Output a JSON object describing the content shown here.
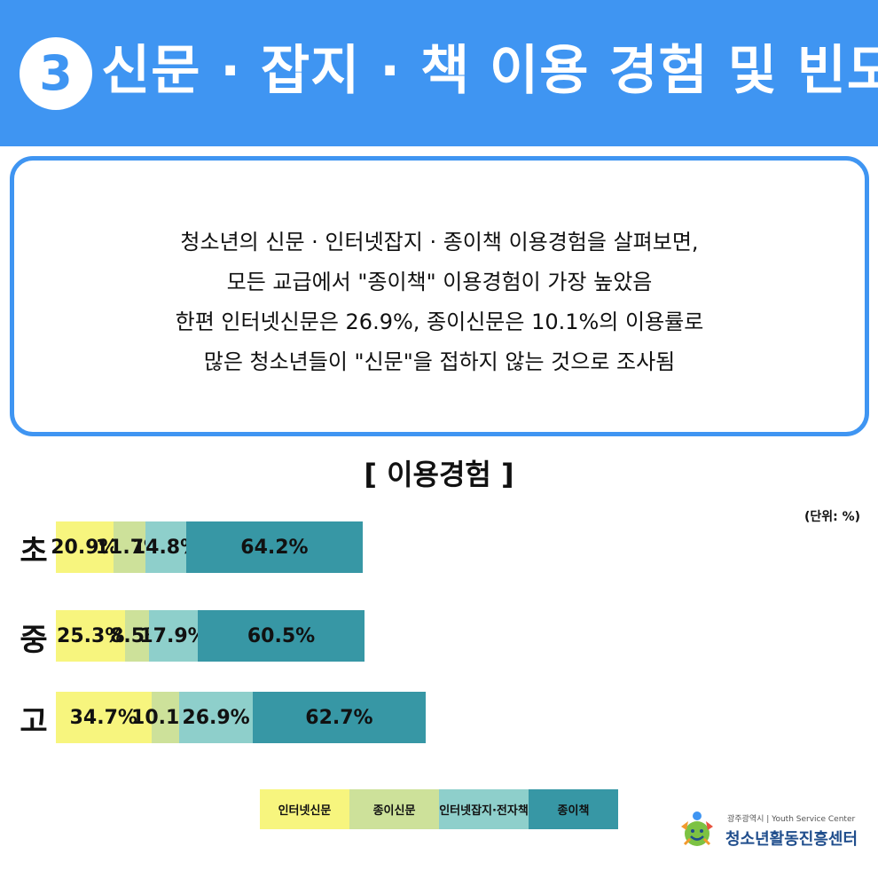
{
  "header": {
    "number": "3",
    "title": "신문 · 잡지 · 책 이용 경험 및 빈도"
  },
  "summary": {
    "lines": [
      "청소년의 신문 · 인터넷잡지 · 종이책 이용경험을 살펴보면,",
      "모든 교급에서 \"종이책\" 이용경험이 가장 높았음",
      "한편 인터넷신문은 26.9%, 종이신문은 10.1%의 이용률로",
      "많은 청소년들이 \"신문\"을 접하지 않는 것으로 조사됨"
    ]
  },
  "chart_data": {
    "type": "bar",
    "orientation": "horizontal-stacked",
    "title": "[ 이용경험 ]",
    "unit": "(단위: %)",
    "categories": [
      "초",
      "중",
      "고"
    ],
    "series": [
      {
        "name": "인터넷신문",
        "values": [
          20.9,
          25.3,
          34.7
        ],
        "labels": [
          "20.9%",
          "25.3%",
          "34.7%"
        ],
        "color": "#f7f57e"
      },
      {
        "name": "종이신문",
        "values": [
          11.7,
          8.5,
          10.1
        ],
        "labels": [
          "11.7%",
          "8.5%",
          "10.1%"
        ],
        "color": "#cde19a"
      },
      {
        "name": "인터넷잡지·전자책",
        "values": [
          14.8,
          17.9,
          26.9
        ],
        "labels": [
          "14.8%",
          "17.9%",
          "26.9%"
        ],
        "color": "#8ecfcb"
      },
      {
        "name": "종이책",
        "values": [
          64.2,
          60.5,
          62.7
        ],
        "labels": [
          "64.2%",
          "60.5%",
          "62.7%"
        ],
        "color": "#3797a5"
      }
    ],
    "legend_position": "bottom",
    "grid": false
  },
  "logo": {
    "top_line": "광주광역시 | Youth Service Center",
    "name": "청소년활동진흥센터"
  }
}
